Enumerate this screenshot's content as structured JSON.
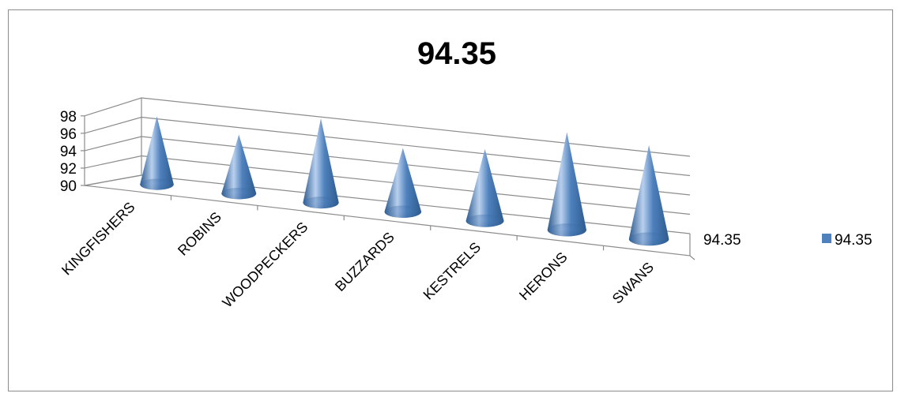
{
  "chart_data": {
    "type": "bar",
    "shape": "3d-cone",
    "title": "94.35",
    "categories": [
      "KINGFISHERS",
      "ROBINS",
      "WOODPECKERS",
      "BUZZARDS",
      "KESTRELS",
      "HERONS",
      "SWANS"
    ],
    "series": [
      {
        "name": "94.35",
        "values": [
          96.2,
          95.2,
          97.2,
          95.3,
          95.8,
          97.7,
          97.2
        ]
      }
    ],
    "depth_axis_label": "94.35",
    "ylim": [
      90,
      98
    ],
    "yticks": [
      "90",
      "92",
      "94",
      "96",
      "98"
    ],
    "grid": true,
    "legend_position": "right",
    "colors": {
      "cone_base": "#4f81bd",
      "cone_light": "#b9d0ee",
      "cone_dark": "#2c5a8e",
      "grid": "#8c8c8c"
    }
  }
}
